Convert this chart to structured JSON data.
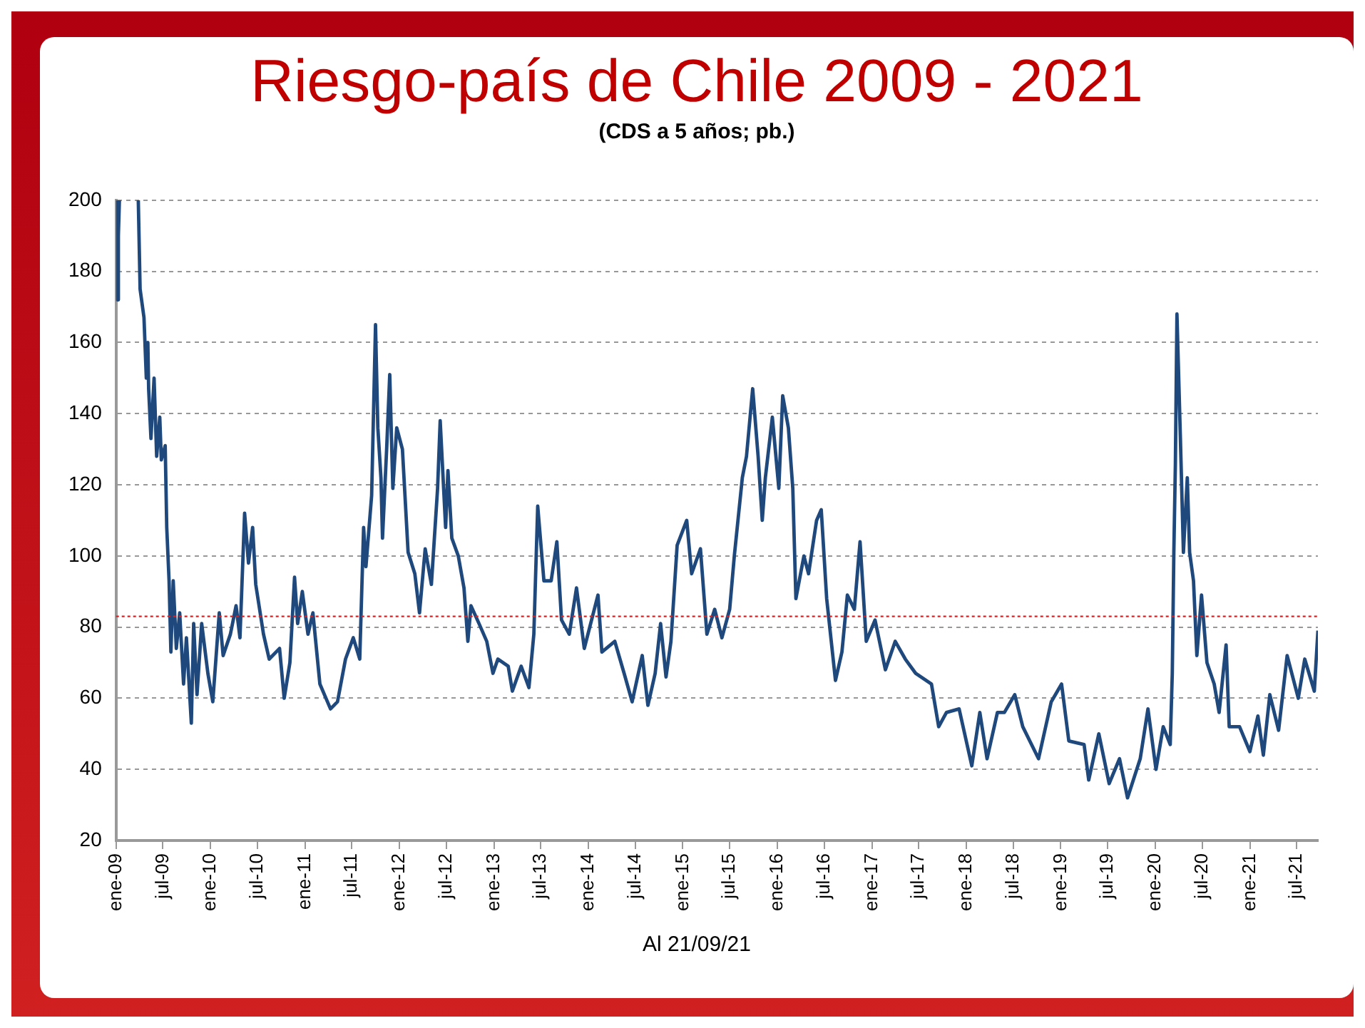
{
  "chart_data": {
    "type": "line",
    "title": "Riesgo-país de Chile 2009 - 2021",
    "subtitle": "(CDS a 5 años; pb.)",
    "annotations": [
      "Al 21/09/21"
    ],
    "x": [
      "2009-01-02",
      "2009-01-06",
      "2009-01-10",
      "2009-01-14",
      "2009-02-15",
      "2009-03-28",
      "2009-04-04",
      "2009-04-19",
      "2009-04-28",
      "2009-05-04",
      "2009-05-07",
      "2009-05-16",
      "2009-05-28",
      "2009-06-07",
      "2009-06-19",
      "2009-06-25",
      "2009-07-10",
      "2009-07-16",
      "2009-07-25",
      "2009-08-01",
      "2009-08-10",
      "2009-08-22",
      "2009-09-04",
      "2009-09-19",
      "2009-09-30",
      "2009-10-19",
      "2009-10-28",
      "2009-11-10",
      "2009-11-28",
      "2009-12-22",
      "2010-01-10",
      "2010-02-04",
      "2010-02-19",
      "2010-03-19",
      "2010-04-10",
      "2010-04-25",
      "2010-05-13",
      "2010-05-28",
      "2010-06-13",
      "2010-06-25",
      "2010-07-25",
      "2010-08-16",
      "2010-09-25",
      "2010-10-13",
      "2010-11-04",
      "2010-11-22",
      "2010-12-04",
      "2010-12-22",
      "2011-01-13",
      "2011-02-01",
      "2011-02-28",
      "2011-04-10",
      "2011-05-07",
      "2011-06-07",
      "2011-07-07",
      "2011-08-01",
      "2011-08-16",
      "2011-08-25",
      "2011-09-16",
      "2011-10-01",
      "2011-10-10",
      "2011-10-22",
      "2011-10-28",
      "2011-11-13",
      "2011-11-25",
      "2011-12-07",
      "2011-12-22",
      "2012-01-13",
      "2012-02-04",
      "2012-03-01",
      "2012-03-19",
      "2012-04-10",
      "2012-05-04",
      "2012-05-28",
      "2012-06-07",
      "2012-06-28",
      "2012-07-07",
      "2012-07-22",
      "2012-08-16",
      "2012-09-07",
      "2012-09-22",
      "2012-10-04",
      "2012-11-04",
      "2012-12-04",
      "2012-12-28",
      "2013-01-16",
      "2013-02-25",
      "2013-03-13",
      "2013-04-16",
      "2013-05-16",
      "2013-06-04",
      "2013-06-19",
      "2013-07-13",
      "2013-08-10",
      "2013-09-01",
      "2013-09-19",
      "2013-10-19",
      "2013-11-16",
      "2013-12-16",
      "2014-02-07",
      "2014-02-22",
      "2014-04-13",
      "2014-05-19",
      "2014-06-19",
      "2014-07-28",
      "2014-08-19",
      "2014-09-16",
      "2014-10-07",
      "2014-10-28",
      "2014-11-16",
      "2014-12-10",
      "2015-01-16",
      "2015-02-04",
      "2015-03-10",
      "2015-04-04",
      "2015-05-04",
      "2015-06-01",
      "2015-07-01",
      "2015-07-19",
      "2015-08-19",
      "2015-09-04",
      "2015-09-28",
      "2015-10-19",
      "2015-11-04",
      "2015-11-16",
      "2015-12-13",
      "2016-01-07",
      "2016-01-22",
      "2016-02-13",
      "2016-03-01",
      "2016-03-13",
      "2016-04-13",
      "2016-05-01",
      "2016-06-01",
      "2016-06-19",
      "2016-07-10",
      "2016-08-13",
      "2016-09-07",
      "2016-09-28",
      "2016-10-25",
      "2016-11-16",
      "2016-12-10",
      "2017-01-13",
      "2017-02-22",
      "2017-04-01",
      "2017-05-10",
      "2017-06-19",
      "2017-08-19",
      "2017-09-16",
      "2017-10-16",
      "2017-12-04",
      "2018-01-22",
      "2018-02-22",
      "2018-03-22",
      "2018-05-01",
      "2018-05-28",
      "2018-07-07",
      "2018-08-07",
      "2018-10-07",
      "2018-11-25",
      "2019-01-04",
      "2019-02-01",
      "2019-04-01",
      "2019-04-19",
      "2019-05-28",
      "2019-07-07",
      "2019-08-16",
      "2019-09-16",
      "2019-11-04",
      "2019-12-04",
      "2020-01-04",
      "2020-02-01",
      "2020-02-28",
      "2020-03-07",
      "2020-03-13",
      "2020-03-19",
      "2020-03-25",
      "2020-04-07",
      "2020-04-19",
      "2020-05-04",
      "2020-05-13",
      "2020-05-28",
      "2020-06-10",
      "2020-06-28",
      "2020-07-19",
      "2020-08-16",
      "2020-09-04",
      "2020-10-01",
      "2020-10-13",
      "2020-11-22",
      "2021-01-01",
      "2021-02-01",
      "2021-02-22",
      "2021-03-19",
      "2021-04-22",
      "2021-05-25",
      "2021-07-07",
      "2021-08-01",
      "2021-09-07",
      "2021-09-21"
    ],
    "series": [
      {
        "color": "#1f497d",
        "values": [
          200,
          172,
          190,
          200,
          null,
          200,
          175,
          167,
          150,
          160,
          147,
          133,
          150,
          128,
          139,
          127,
          131,
          108,
          93,
          73,
          93,
          74,
          84,
          64,
          77,
          53,
          81,
          61,
          81,
          67,
          59,
          84,
          72,
          78,
          86,
          77,
          112,
          98,
          108,
          92,
          78,
          71,
          74,
          60,
          70,
          94,
          81,
          90,
          78,
          84,
          64,
          57,
          59,
          71,
          77,
          71,
          108,
          97,
          117,
          165,
          136,
          122,
          105,
          130,
          151,
          119,
          136,
          130,
          101,
          95,
          84,
          102,
          92,
          119,
          138,
          108,
          124,
          105,
          100,
          91,
          76,
          86,
          81,
          76,
          67,
          71,
          69,
          62,
          69,
          63,
          78,
          114,
          93,
          93,
          104,
          82,
          78,
          91,
          74,
          89,
          73,
          76,
          67,
          59,
          72,
          58,
          67,
          81,
          66,
          76,
          103,
          110,
          95,
          102,
          78,
          85,
          77,
          85,
          100,
          122,
          128,
          147,
          128,
          110,
          122,
          139,
          119,
          145,
          136,
          119,
          88,
          100,
          95,
          110,
          113,
          88,
          65,
          73,
          89,
          85,
          104,
          76,
          82,
          68,
          76,
          71,
          67,
          64,
          52,
          56,
          57,
          41,
          56,
          43,
          56,
          56,
          61,
          52,
          43,
          59,
          64,
          48,
          47,
          37,
          50,
          36,
          43,
          32,
          43,
          57,
          40,
          52,
          47,
          67,
          101,
          126,
          168,
          134,
          101,
          122,
          101,
          93,
          72,
          89,
          70,
          64,
          56,
          75,
          52,
          52,
          45,
          55,
          44,
          61,
          51,
          72,
          60,
          71,
          62,
          79
        ]
      }
    ],
    "xlim": [
      "2009-01-01",
      "2021-09-21"
    ],
    "xticks": [
      {
        "value": "2009-01",
        "label": "ene-09"
      },
      {
        "value": "2009-07",
        "label": "jul-09"
      },
      {
        "value": "2010-01",
        "label": "ene-10"
      },
      {
        "value": "2010-07",
        "label": "jul-10"
      },
      {
        "value": "2011-01",
        "label": "ene-11"
      },
      {
        "value": "2011-07",
        "label": "jul-11"
      },
      {
        "value": "2012-01",
        "label": "ene-12"
      },
      {
        "value": "2012-07",
        "label": "jul-12"
      },
      {
        "value": "2013-01",
        "label": "ene-13"
      },
      {
        "value": "2013-07",
        "label": "jul-13"
      },
      {
        "value": "2014-01",
        "label": "ene-14"
      },
      {
        "value": "2014-07",
        "label": "jul-14"
      },
      {
        "value": "2015-01",
        "label": "ene-15"
      },
      {
        "value": "2015-07",
        "label": "jul-15"
      },
      {
        "value": "2016-01",
        "label": "ene-16"
      },
      {
        "value": "2016-07",
        "label": "jul-16"
      },
      {
        "value": "2017-01",
        "label": "ene-17"
      },
      {
        "value": "2017-07",
        "label": "jul-17"
      },
      {
        "value": "2018-01",
        "label": "ene-18"
      },
      {
        "value": "2018-07",
        "label": "jul-18"
      },
      {
        "value": "2019-01",
        "label": "ene-19"
      },
      {
        "value": "2019-07",
        "label": "jul-19"
      },
      {
        "value": "2020-01",
        "label": "ene-20"
      },
      {
        "value": "2020-07",
        "label": "jul-20"
      },
      {
        "value": "2021-01",
        "label": "ene-21"
      },
      {
        "value": "2021-07",
        "label": "jul-21"
      }
    ],
    "ylim": [
      20,
      200
    ],
    "yticks": [
      20,
      40,
      60,
      80,
      100,
      120,
      140,
      160,
      180,
      200
    ],
    "ref_lines": [
      {
        "axis": "y",
        "value": 83,
        "color": "#e02020",
        "line_style": "dotted"
      }
    ],
    "grid": "y",
    "legend": false,
    "marker": "none",
    "line_style": "solid"
  }
}
